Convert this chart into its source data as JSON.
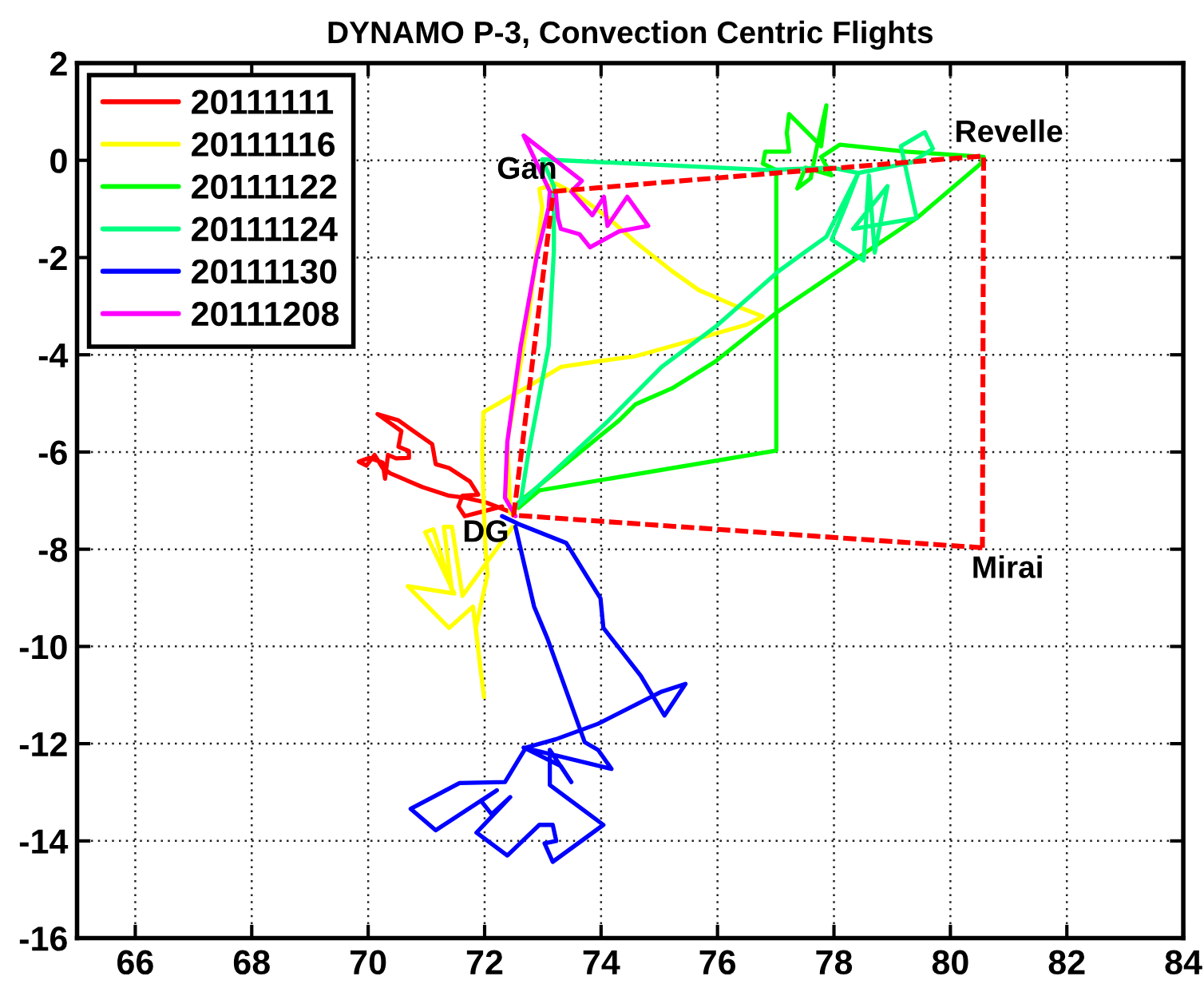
{
  "chart_data": {
    "type": "line",
    "title": "DYNAMO P-3, Convection Centric Flights",
    "xlim": [
      65,
      84
    ],
    "xticks": [
      66,
      68,
      70,
      72,
      74,
      76,
      78,
      80,
      82,
      84
    ],
    "ylim": [
      -16,
      2
    ],
    "yticks": [
      -16,
      -14,
      -12,
      -10,
      -8,
      -6,
      -4,
      -2,
      0,
      2
    ],
    "grid": true,
    "legend": "top left",
    "series": [
      {
        "name": "20111111",
        "color": "#ff0000",
        "x": [
          72.3,
          71.85,
          71.66,
          71.55,
          71.62,
          71.89,
          71.75,
          71.39,
          71.16,
          71.1,
          70.84,
          70.52,
          70.16,
          70.57,
          70.52,
          70.7,
          70.7,
          70.48,
          70.34,
          70.29,
          70.25,
          70.02,
          69.84,
          69.97,
          70.11,
          70.25,
          70.38,
          70.93,
          71.39,
          71.66,
          72.03,
          72.39
        ],
        "values": [
          -7.12,
          -7.26,
          -7.32,
          -7.12,
          -6.9,
          -6.88,
          -6.61,
          -6.33,
          -6.25,
          -5.84,
          -5.62,
          -5.35,
          -5.22,
          -5.57,
          -5.89,
          -5.98,
          -6.12,
          -6.13,
          -6.06,
          -6.55,
          -6.22,
          -6.12,
          -6.2,
          -6.28,
          -6.06,
          -6.33,
          -6.44,
          -6.72,
          -6.9,
          -6.94,
          -7.04,
          -7.21
        ]
      },
      {
        "name": "20111116",
        "color": "#ffff00",
        "x": [
          72.44,
          72.39,
          72.76,
          72.99,
          72.94,
          73.22,
          73.58,
          74.13,
          74.59,
          75.22,
          75.68,
          76.32,
          76.78,
          76.5,
          75.22,
          74.59,
          74.04,
          73.31,
          72.85,
          71.98,
          71.96,
          71.98,
          72.01,
          72.05,
          71.94,
          71.85,
          71.92,
          71.99,
          71.8,
          71.39,
          70.68,
          71.48,
          70.98,
          71.12,
          71.44,
          71.3,
          71.44,
          71.62,
          72.48
        ],
        "values": [
          -7.26,
          -5.79,
          -3.16,
          -0.97,
          -0.59,
          -0.48,
          -0.7,
          -1.19,
          -1.68,
          -2.28,
          -2.67,
          -3.0,
          -3.21,
          -3.38,
          -3.82,
          -4.03,
          -4.12,
          -4.25,
          -4.58,
          -5.18,
          -6.0,
          -6.94,
          -7.87,
          -8.52,
          -9.12,
          -9.62,
          -10.38,
          -11.04,
          -9.18,
          -9.62,
          -8.76,
          -8.91,
          -7.65,
          -7.59,
          -8.85,
          -7.54,
          -7.54,
          -8.96,
          -7.54
        ]
      },
      {
        "name": "20111122",
        "color": "#00ff00",
        "x": [
          72.58,
          72.94,
          77.01,
          77.01,
          76.78,
          76.82,
          77.23,
          77.19,
          77.23,
          77.78,
          77.87,
          77.69,
          77.6,
          77.37,
          77.51,
          77.96,
          77.78,
          78.1,
          79.24,
          80.57,
          80.52,
          79.42,
          77.05,
          75.96,
          75.22,
          74.59,
          74.31,
          72.58
        ],
        "values": [
          -7.15,
          -6.79,
          -5.97,
          -0.2,
          -0.07,
          0.18,
          0.18,
          0.56,
          0.95,
          0.29,
          1.13,
          0.18,
          -0.37,
          -0.58,
          -0.15,
          -0.31,
          0.07,
          0.32,
          0.18,
          0.07,
          -0.07,
          -1.19,
          -3.1,
          -4.14,
          -4.69,
          -5.02,
          -5.35,
          -7.04
        ]
      },
      {
        "name": "20111124",
        "color": "#00ff80",
        "x": [
          72.62,
          72.74,
          73.1,
          73.19,
          73.19,
          72.99,
          76.87,
          77.96,
          78.42,
          78.19,
          77.96,
          78.51,
          78.6,
          78.7,
          78.92,
          78.33,
          79.42,
          79.24,
          79.15,
          79.56,
          79.7,
          79.34,
          78.42,
          77.87,
          77.05,
          75.96,
          75.04,
          74.13,
          72.55
        ],
        "values": [
          -7.02,
          -6.11,
          -3.82,
          -1.85,
          -0.53,
          0.02,
          -0.2,
          -0.15,
          -0.26,
          -0.97,
          -1.63,
          -2.06,
          -0.31,
          -1.9,
          -0.53,
          -1.41,
          -1.19,
          -0.2,
          0.29,
          0.58,
          0.24,
          -0.04,
          -0.26,
          -1.57,
          -2.28,
          -3.43,
          -4.25,
          -5.35,
          -7.12
        ]
      },
      {
        "name": "20111130",
        "color": "#0000ff",
        "x": [
          72.3,
          72.58,
          73.4,
          73.99,
          74.04,
          74.68,
          75.09,
          75.45,
          75.04,
          73.95,
          73.22,
          72.71,
          72.35,
          71.57,
          70.73,
          71.16,
          72.21,
          71.94,
          72.12,
          72.44,
          71.86,
          72.39,
          72.94,
          73.17,
          73.23,
          73.03,
          73.17,
          74.04,
          73.12,
          73.12,
          73.49,
          73.31,
          72.67,
          74.18,
          73.95,
          73.72,
          73.08,
          72.85,
          72.53
        ],
        "values": [
          -7.32,
          -7.48,
          -7.87,
          -9.01,
          -9.62,
          -10.6,
          -11.42,
          -10.77,
          -10.93,
          -11.59,
          -11.91,
          -12.08,
          -12.79,
          -12.81,
          -13.34,
          -13.78,
          -12.96,
          -13.18,
          -13.45,
          -13.1,
          -13.83,
          -14.3,
          -13.67,
          -13.67,
          -14.0,
          -14.05,
          -14.43,
          -13.67,
          -12.85,
          -12.13,
          -12.79,
          -12.46,
          -12.08,
          -12.52,
          -12.13,
          -11.97,
          -9.84,
          -9.18,
          -7.54
        ]
      },
      {
        "name": "20111208",
        "color": "#ff00ff",
        "x": [
          72.53,
          72.35,
          72.39,
          72.62,
          72.9,
          73.1,
          73.12,
          72.67,
          73.67,
          73.49,
          73.85,
          74.05,
          74.11,
          74.45,
          74.81,
          74.31,
          73.81,
          73.63,
          73.31,
          73.26,
          73.22
        ],
        "values": [
          -7.32,
          -6.94,
          -5.79,
          -3.82,
          -1.95,
          -0.97,
          -0.64,
          0.51,
          -0.42,
          -0.64,
          -1.13,
          -0.75,
          -1.35,
          -0.75,
          -1.35,
          -1.46,
          -1.79,
          -1.52,
          -1.41,
          -1.19,
          -0.64
        ]
      },
      {
        "color": "#ff0000",
        "line_style": "dashed",
        "x": [
          73.18,
          80.57,
          80.55
        ],
        "values": [
          -0.64,
          0.09,
          -7.97
        ]
      },
      {
        "color": "#ff0000",
        "line_style": "dashed",
        "x": [
          80.55,
          72.5,
          73.18
        ],
        "values": [
          -7.97,
          -7.3,
          -0.64
        ]
      }
    ],
    "annotations": [
      {
        "text": "Gan",
        "x": 73.18,
        "y": -0.64
      },
      {
        "text": "Revelle",
        "x": 80.57,
        "y": 0.09
      },
      {
        "text": "DG",
        "x": 72.5,
        "y": -7.3
      },
      {
        "text": "Mirai",
        "x": 80.55,
        "y": -7.97
      }
    ]
  }
}
